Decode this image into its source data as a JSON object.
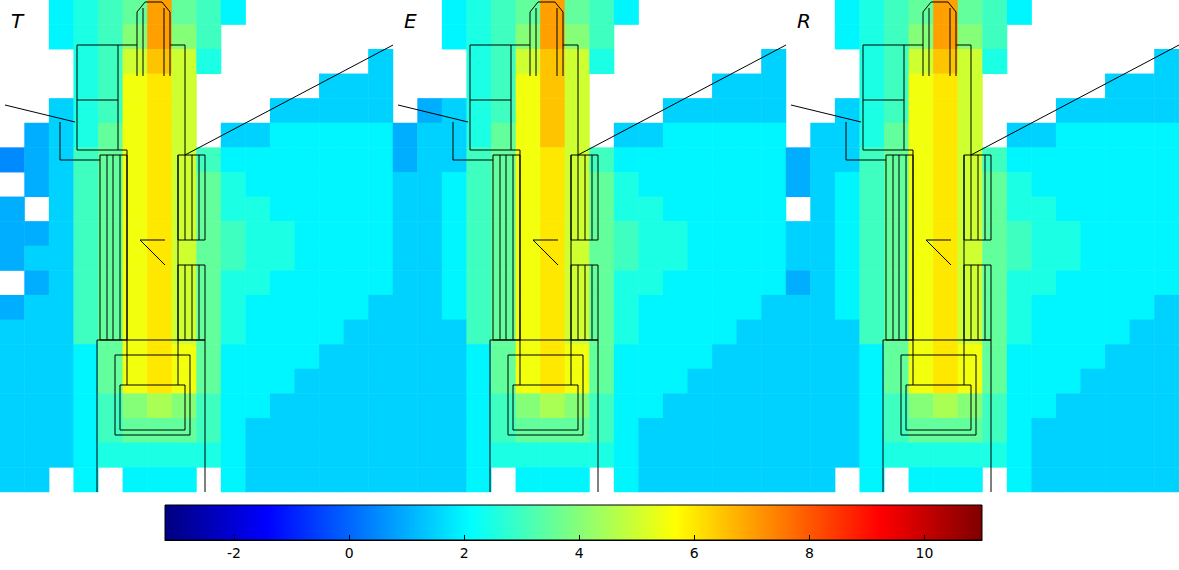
{
  "chart_data": {
    "type": "heatmap",
    "tick_labels": false,
    "colorbar": {
      "range": [
        -3.2,
        11
      ],
      "ticks": [
        -2,
        0,
        2,
        4,
        6,
        8,
        10
      ]
    },
    "panels": [
      {
        "title": "T",
        "cells": [
          [
            null,
            null,
            2,
            2.5,
            3,
            3.5,
            7,
            3.5,
            3,
            2,
            null,
            null,
            null,
            null,
            null,
            null
          ],
          [
            null,
            null,
            2,
            2.5,
            3,
            4,
            7,
            4,
            3,
            null,
            null,
            null,
            null,
            null,
            null,
            null
          ],
          [
            null,
            null,
            null,
            2.5,
            3,
            5,
            6.5,
            5,
            2.5,
            null,
            null,
            null,
            null,
            null,
            null,
            1.5
          ],
          [
            null,
            null,
            null,
            2.5,
            3,
            5.5,
            6,
            5,
            null,
            null,
            null,
            null,
            null,
            1.5,
            1.5,
            1.5
          ],
          [
            null,
            null,
            1.5,
            2.5,
            3,
            5.5,
            6,
            5,
            null,
            null,
            null,
            1.5,
            1.5,
            1.5,
            1.5,
            1.5
          ],
          [
            null,
            1,
            1.5,
            2.5,
            3.5,
            5.5,
            6,
            5,
            null,
            1.5,
            1.5,
            2,
            2,
            2,
            2,
            2
          ],
          [
            0.5,
            1,
            1.5,
            3,
            3.5,
            5.5,
            6,
            5,
            3,
            2,
            2,
            2,
            2,
            2,
            2,
            2
          ],
          [
            null,
            1,
            1.5,
            3,
            3.5,
            5.5,
            6,
            5,
            3.5,
            2.5,
            2,
            2,
            2,
            2,
            2,
            2
          ],
          [
            1,
            null,
            1.5,
            3,
            3.5,
            5.5,
            6,
            5,
            3.5,
            2.5,
            2.5,
            2,
            2,
            2,
            2,
            2
          ],
          [
            1,
            1,
            1.5,
            3,
            3.5,
            5.5,
            6,
            5,
            3.5,
            3,
            2.5,
            2.5,
            2,
            2,
            2,
            2
          ],
          [
            1,
            1.5,
            1.5,
            3,
            3.5,
            5.5,
            6,
            5,
            3.5,
            3,
            2.5,
            2.5,
            2,
            2,
            2,
            2
          ],
          [
            null,
            1,
            1.5,
            3,
            3.5,
            5.5,
            6,
            5,
            3.5,
            2.5,
            2.5,
            2,
            2,
            2,
            2,
            2
          ],
          [
            1,
            1.5,
            1.5,
            3,
            3.5,
            5.5,
            6,
            5,
            3.5,
            2.5,
            2,
            2,
            2,
            2,
            2,
            1.5
          ],
          [
            1.5,
            1.5,
            1.5,
            3,
            3.5,
            5.5,
            6,
            5,
            3.5,
            2.5,
            2,
            2,
            2,
            2,
            1.5,
            1.5
          ],
          [
            1.5,
            1.5,
            1.5,
            2,
            3.5,
            5.5,
            6,
            5.5,
            3.5,
            2,
            2,
            2,
            2,
            1.5,
            1.5,
            1.5
          ],
          [
            1.5,
            1.5,
            1.5,
            2,
            3.5,
            5.5,
            6,
            5.5,
            3.5,
            2,
            2,
            2,
            1.5,
            1.5,
            1.5,
            1.5
          ],
          [
            1.5,
            1.5,
            1.5,
            2,
            3,
            4,
            4.5,
            4,
            3,
            2,
            2,
            1.5,
            1.5,
            1.5,
            1.5,
            1.5
          ],
          [
            1.5,
            1.5,
            1.5,
            2,
            3,
            3.5,
            3.5,
            3.5,
            3,
            2,
            1.5,
            1.5,
            1.5,
            1.5,
            1.5,
            1.5
          ],
          [
            1.5,
            1.5,
            1.5,
            2,
            2.5,
            2.5,
            2.5,
            2.5,
            2.5,
            2,
            1.5,
            1.5,
            1.5,
            1.5,
            1.5,
            1.5
          ],
          [
            1.5,
            1.5,
            null,
            2,
            null,
            2,
            2,
            2,
            null,
            2,
            1.5,
            1.5,
            1.5,
            1.5,
            1.5,
            1.5
          ]
        ]
      },
      {
        "title": "E",
        "cells": [
          [
            null,
            null,
            2,
            2.5,
            3,
            3.5,
            7,
            3.5,
            3,
            2,
            null,
            null,
            null,
            null,
            null,
            null
          ],
          [
            null,
            null,
            2,
            2.5,
            3,
            4,
            7,
            4,
            3,
            null,
            null,
            null,
            null,
            null,
            null,
            null
          ],
          [
            null,
            null,
            null,
            2.5,
            3,
            5,
            6.5,
            5,
            2.5,
            null,
            null,
            null,
            null,
            null,
            null,
            1.5
          ],
          [
            null,
            null,
            null,
            2.5,
            3,
            5.5,
            6.5,
            5,
            null,
            null,
            null,
            null,
            null,
            1.5,
            1.5,
            1.5
          ],
          [
            null,
            1,
            1.5,
            2.5,
            3,
            5.5,
            6.5,
            5,
            null,
            null,
            null,
            1.5,
            1.5,
            1.5,
            1.5,
            1.5
          ],
          [
            1,
            1.5,
            1.5,
            2.5,
            3.5,
            5.5,
            6.5,
            5,
            null,
            1.5,
            1.5,
            2,
            2,
            2,
            2,
            2
          ],
          [
            1,
            1.5,
            1.5,
            3,
            3.5,
            5.5,
            6,
            5,
            3,
            2,
            2,
            2,
            2,
            2,
            2,
            2
          ],
          [
            1.5,
            1.5,
            2,
            3,
            3.5,
            5.5,
            6,
            5,
            3.5,
            2.5,
            2,
            2,
            2,
            2,
            2,
            2
          ],
          [
            1.5,
            1.5,
            2,
            3,
            3.5,
            5.5,
            6,
            5,
            3.5,
            2.5,
            2.5,
            2,
            2,
            2,
            2,
            2
          ],
          [
            1.5,
            1.5,
            2,
            3,
            3.5,
            5.5,
            6,
            5,
            3.5,
            3,
            2.5,
            2.5,
            2,
            2,
            2,
            2
          ],
          [
            1.5,
            1.5,
            2,
            3,
            3.5,
            5.5,
            6,
            5,
            3.5,
            3,
            2.5,
            2.5,
            2,
            2,
            2,
            2
          ],
          [
            1.5,
            1.5,
            2,
            3,
            3.5,
            5.5,
            6,
            5,
            3.5,
            2.5,
            2.5,
            2,
            2,
            2,
            2,
            2
          ],
          [
            1.5,
            1.5,
            2,
            3,
            3.5,
            5.5,
            6,
            5,
            3.5,
            2.5,
            2,
            2,
            2,
            2,
            2,
            1.5
          ],
          [
            1.5,
            1.5,
            1.5,
            3,
            3.5,
            5.5,
            6,
            5,
            3.5,
            2.5,
            2,
            2,
            2,
            2,
            1.5,
            1.5
          ],
          [
            1.5,
            1.5,
            1.5,
            2,
            3.5,
            5.5,
            6,
            5.5,
            3.5,
            2,
            2,
            2,
            2,
            1.5,
            1.5,
            1.5
          ],
          [
            1.5,
            1.5,
            1.5,
            2,
            3.5,
            5.5,
            6,
            5.5,
            3.5,
            2,
            2,
            2,
            1.5,
            1.5,
            1.5,
            1.5
          ],
          [
            1.5,
            1.5,
            1.5,
            2,
            3,
            4,
            4.5,
            4,
            3,
            2,
            2,
            1.5,
            1.5,
            1.5,
            1.5,
            1.5
          ],
          [
            1.5,
            1.5,
            1.5,
            2,
            3,
            3.5,
            3.5,
            3.5,
            3,
            2,
            1.5,
            1.5,
            1.5,
            1.5,
            1.5,
            1.5
          ],
          [
            1.5,
            1.5,
            1.5,
            2,
            2.5,
            2.5,
            2.5,
            2.5,
            2.5,
            2,
            1.5,
            1.5,
            1.5,
            1.5,
            1.5,
            1.5
          ],
          [
            1.5,
            1.5,
            1.5,
            2,
            null,
            2,
            2,
            2,
            null,
            2,
            1.5,
            1.5,
            1.5,
            1.5,
            1.5,
            1.5
          ]
        ]
      },
      {
        "title": "R",
        "cells": [
          [
            null,
            null,
            2,
            2.5,
            3,
            3.5,
            7,
            3.5,
            3,
            2,
            null,
            null,
            null,
            null,
            null,
            null
          ],
          [
            null,
            null,
            2,
            2.5,
            3,
            4,
            7,
            4,
            3,
            null,
            null,
            null,
            null,
            null,
            null,
            null
          ],
          [
            null,
            null,
            null,
            2.5,
            3,
            5,
            6.5,
            5,
            2.5,
            null,
            null,
            null,
            null,
            null,
            null,
            1.5
          ],
          [
            null,
            null,
            null,
            2.5,
            3,
            5.5,
            6,
            5,
            null,
            null,
            null,
            null,
            null,
            1.5,
            1.5,
            1.5
          ],
          [
            null,
            null,
            1.5,
            2.5,
            3,
            5.5,
            6,
            5,
            null,
            null,
            null,
            1.5,
            1.5,
            1.5,
            1.5,
            1.5
          ],
          [
            null,
            1.5,
            1.5,
            2.5,
            3.5,
            5.5,
            6,
            5,
            null,
            1.5,
            1.5,
            2,
            2,
            2,
            2,
            2
          ],
          [
            1,
            1.5,
            1.5,
            3,
            3.5,
            5.5,
            6,
            5,
            3,
            2,
            2,
            2,
            2,
            2,
            2,
            2
          ],
          [
            1,
            1.5,
            2,
            3,
            3.5,
            5.5,
            6,
            5,
            3.5,
            2.5,
            2,
            2,
            2,
            2,
            2,
            2
          ],
          [
            null,
            1.5,
            2,
            3,
            3.5,
            5.5,
            6,
            5,
            3.5,
            2.5,
            2.5,
            2,
            2,
            2,
            2,
            2
          ],
          [
            1.5,
            1.5,
            2,
            3,
            3.5,
            5.5,
            6,
            5,
            3.5,
            3,
            2.5,
            2.5,
            2,
            2,
            2,
            2
          ],
          [
            1.5,
            1.5,
            2,
            3,
            3.5,
            5.5,
            6,
            5,
            3.5,
            3,
            2.5,
            2.5,
            2,
            2,
            2,
            2
          ],
          [
            1,
            1.5,
            2,
            3,
            3.5,
            5.5,
            6,
            5,
            3.5,
            2.5,
            2.5,
            2,
            2,
            2,
            2,
            2
          ],
          [
            1.5,
            1.5,
            2,
            3,
            3.5,
            5.5,
            6,
            5,
            3.5,
            2.5,
            2,
            2,
            2,
            2,
            2,
            1.5
          ],
          [
            1.5,
            1.5,
            1.5,
            3,
            3.5,
            5.5,
            6,
            5,
            3.5,
            2.5,
            2,
            2,
            2,
            2,
            1.5,
            1.5
          ],
          [
            1.5,
            1.5,
            1.5,
            2,
            3.5,
            5.5,
            6,
            5.5,
            3.5,
            2,
            2,
            2,
            2,
            1.5,
            1.5,
            1.5
          ],
          [
            1.5,
            1.5,
            1.5,
            2,
            3.5,
            5.5,
            6,
            5.5,
            3.5,
            2,
            2,
            2,
            1.5,
            1.5,
            1.5,
            1.5
          ],
          [
            1.5,
            1.5,
            1.5,
            2,
            3,
            4,
            4.5,
            4,
            3,
            2,
            2,
            1.5,
            1.5,
            1.5,
            1.5,
            1.5
          ],
          [
            1.5,
            1.5,
            1.5,
            2,
            3,
            3.5,
            3.5,
            3.5,
            3,
            2,
            1.5,
            1.5,
            1.5,
            1.5,
            1.5,
            1.5
          ],
          [
            1.5,
            1.5,
            1.5,
            2,
            2.5,
            2.5,
            2.5,
            2.5,
            2.5,
            2,
            1.5,
            1.5,
            1.5,
            1.5,
            1.5,
            1.5
          ],
          [
            1.5,
            1.5,
            null,
            2,
            null,
            2,
            2,
            2,
            null,
            2,
            1.5,
            1.5,
            1.5,
            1.5,
            1.5,
            1.5
          ]
        ]
      }
    ]
  }
}
